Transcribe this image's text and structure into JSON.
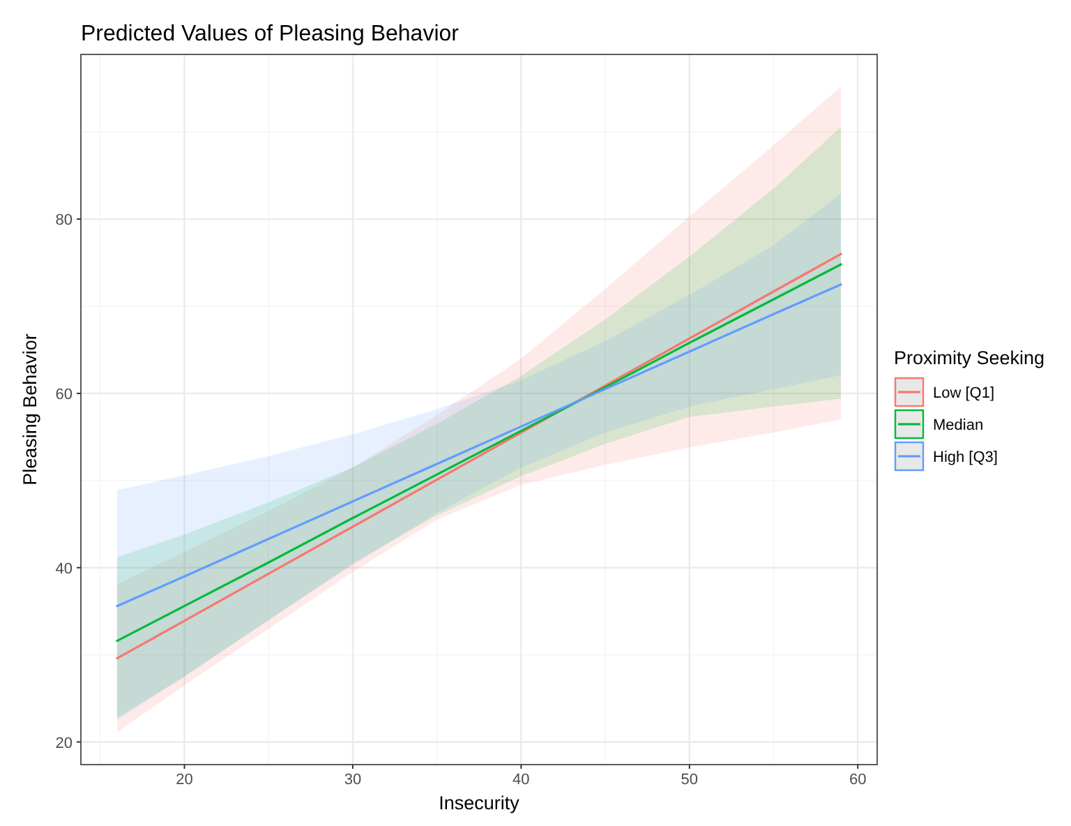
{
  "chart_data": {
    "type": "line",
    "title": "Predicted Values of Pleasing Behavior",
    "xlabel": "Insecurity",
    "ylabel": "Pleasing Behavior",
    "legend_title": "Proximity Seeking",
    "legend": "right",
    "grid": true,
    "xlim": [
      13.85,
      61.15
    ],
    "xticks": [
      20,
      30,
      40,
      50,
      60
    ],
    "ylim": [
      17.4,
      98.9
    ],
    "yticks": [
      20,
      40,
      60,
      80
    ],
    "x": [
      16,
      20,
      25,
      30,
      35,
      40,
      45,
      50,
      55,
      59
    ],
    "series": [
      {
        "name": "Low [Q1]",
        "color": "#f8766d",
        "values": [
          29.6,
          33.9,
          39.3,
          44.7,
          50.1,
          55.5,
          60.9,
          66.3,
          71.7,
          76.0
        ],
        "lower": [
          21.1,
          26.5,
          33,
          39.5,
          45.5,
          49.5,
          51.8,
          53.8,
          55.5,
          57.0
        ],
        "upper": [
          38.1,
          41.8,
          46.5,
          51.5,
          57.5,
          64,
          72,
          80.3,
          88.5,
          95.2
        ]
      },
      {
        "name": "Median",
        "color": "#00ba38",
        "values": [
          31.6,
          35.6,
          40.6,
          45.7,
          50.7,
          55.7,
          60.7,
          65.8,
          70.8,
          74.8
        ],
        "lower": [
          22.8,
          27.5,
          34,
          40.5,
          46,
          50.5,
          54.2,
          57.3,
          58.5,
          59.4
        ],
        "upper": [
          41.2,
          43.8,
          47.5,
          51.5,
          56.5,
          62,
          68.5,
          75.7,
          83.5,
          90.6
        ]
      },
      {
        "name": "High [Q3]",
        "color": "#619cff",
        "values": [
          35.6,
          39.0,
          43.3,
          47.6,
          51.9,
          56.2,
          60.5,
          64.8,
          69.1,
          72.5
        ],
        "lower": [
          22.5,
          27.5,
          34,
          40.3,
          46.3,
          51.5,
          55.5,
          58.5,
          60.5,
          62.1
        ],
        "upper": [
          48.9,
          50.6,
          52.8,
          55.3,
          58.2,
          61.5,
          66,
          71.3,
          77,
          82.9
        ]
      }
    ]
  }
}
